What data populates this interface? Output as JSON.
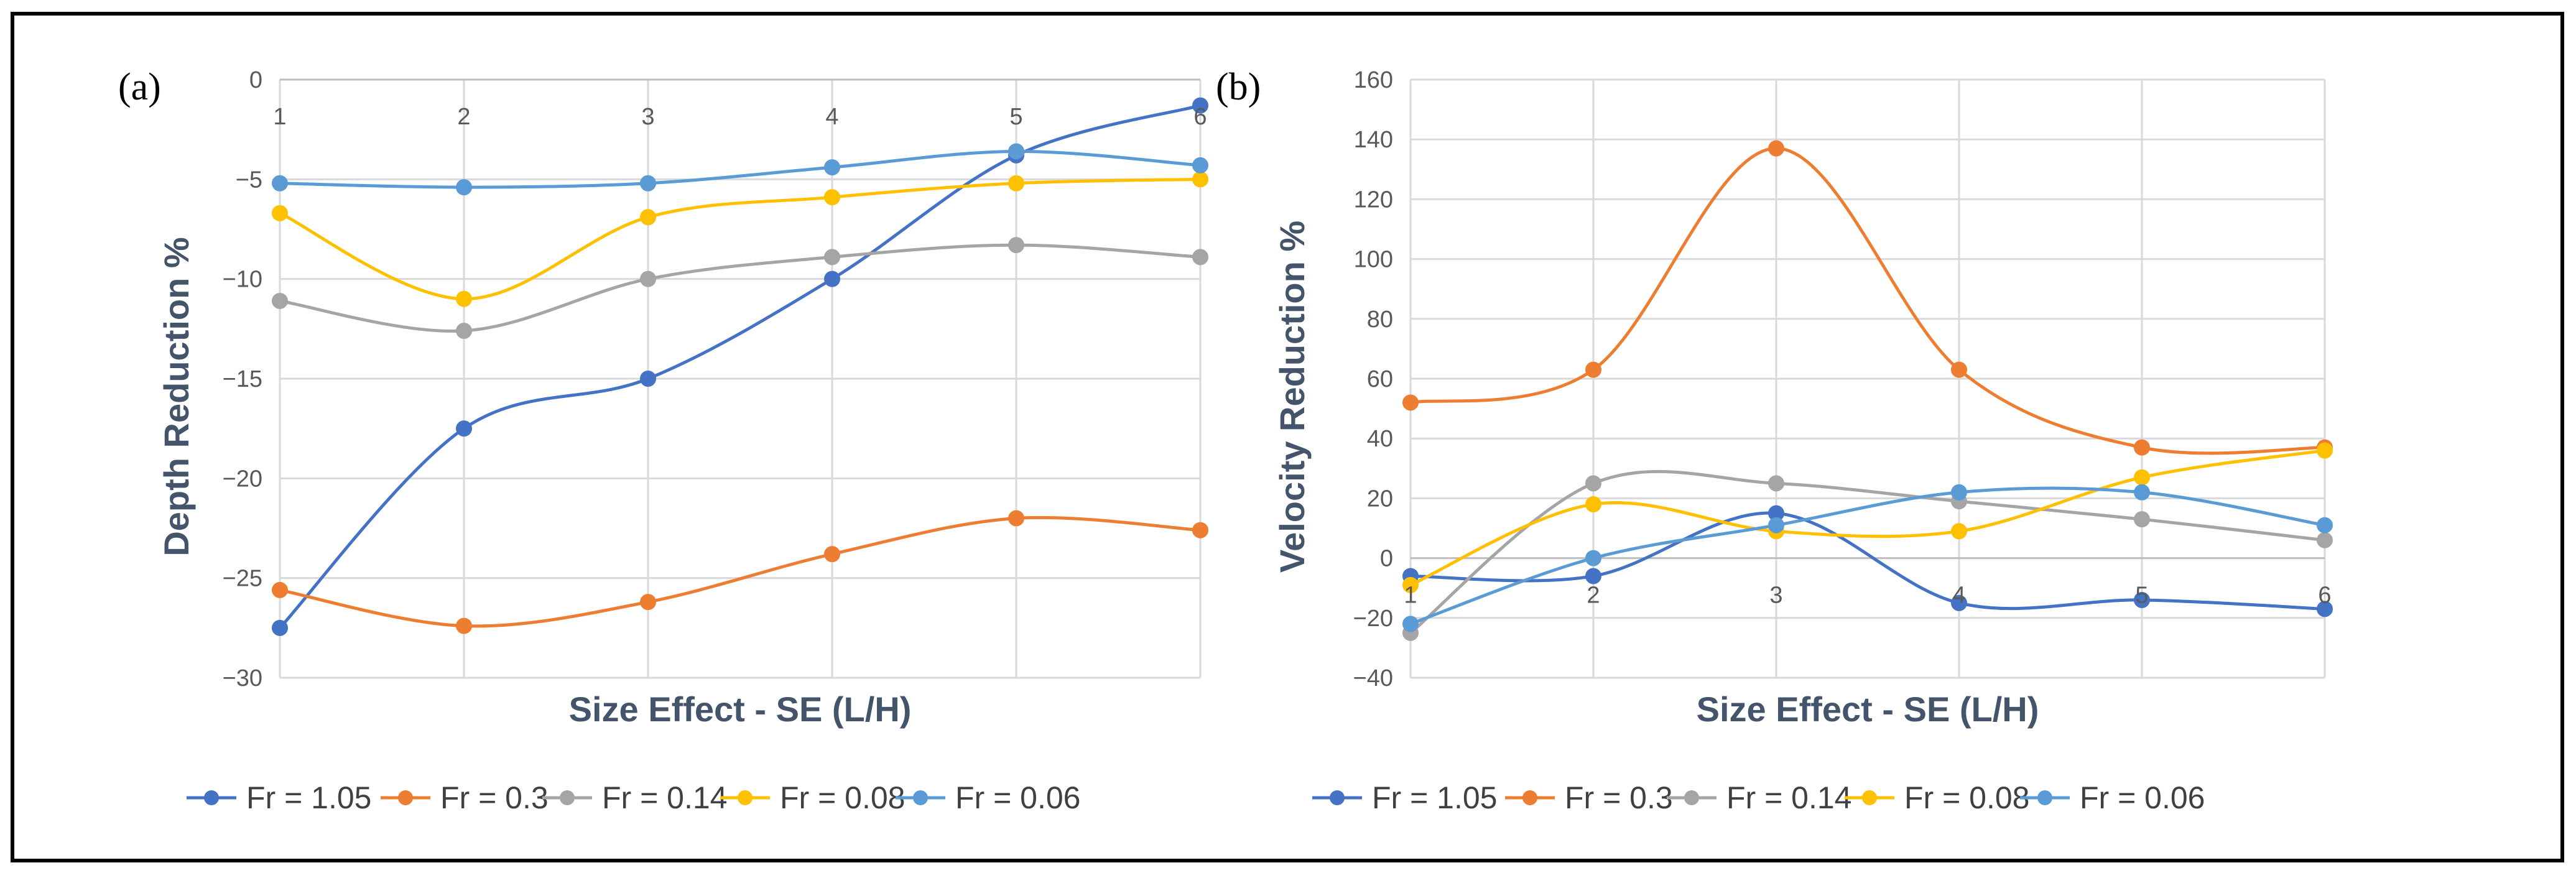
{
  "chart_data": [
    {
      "type": "line",
      "panel_label": "(a)",
      "title": "",
      "xlabel": "Size Effect - SE (L/H)",
      "ylabel": "Depth Reduction %",
      "x": [
        1,
        2,
        3,
        4,
        5,
        6
      ],
      "x_tick_labels": [
        "1",
        "2",
        "3",
        "4",
        "5",
        "6"
      ],
      "xlim": [
        1,
        6
      ],
      "ylim": [
        -30,
        0
      ],
      "y_ticks": [
        0,
        -5,
        -10,
        -15,
        -20,
        -25,
        -30
      ],
      "y_tick_labels": [
        "0",
        "−5",
        "−10",
        "−15",
        "−20",
        "−25",
        "−30"
      ],
      "x_axis_at": 0,
      "grid": true,
      "smooth": true,
      "legend": "bottom",
      "series": [
        {
          "name": "Fr = 1.05",
          "color": "#4472C4",
          "values": [
            -27.5,
            -17.5,
            -15,
            -10,
            -3.8,
            -1.3
          ]
        },
        {
          "name": "Fr = 0.3",
          "color": "#ED7D31",
          "values": [
            -25.6,
            -27.4,
            -26.2,
            -23.8,
            -22,
            -22.6
          ]
        },
        {
          "name": "Fr = 0.14",
          "color": "#A5A5A5",
          "values": [
            -11.1,
            -12.6,
            -10,
            -8.9,
            -8.3,
            -8.9
          ]
        },
        {
          "name": "Fr = 0.08",
          "color": "#FFC000",
          "values": [
            -6.7,
            -11,
            -6.9,
            -5.9,
            -5.2,
            -5
          ]
        },
        {
          "name": "Fr = 0.06",
          "color": "#5B9BD5",
          "values": [
            -5.2,
            -5.4,
            -5.2,
            -4.4,
            -3.6,
            -4.3
          ]
        }
      ]
    },
    {
      "type": "line",
      "panel_label": "(b)",
      "title": "",
      "xlabel": "Size Effect - SE (L/H)",
      "ylabel": "Velocity Reduction %",
      "x": [
        1,
        2,
        3,
        4,
        5,
        6
      ],
      "x_tick_labels": [
        "1",
        "2",
        "3",
        "4",
        "5",
        "6"
      ],
      "xlim": [
        1,
        6
      ],
      "ylim": [
        -40,
        160
      ],
      "y_ticks": [
        160,
        140,
        120,
        100,
        80,
        60,
        40,
        20,
        0,
        -20,
        -40
      ],
      "y_tick_labels": [
        "160",
        "140",
        "120",
        "100",
        "80",
        "60",
        "40",
        "20",
        "0",
        "−20",
        "−40"
      ],
      "x_axis_at": 0,
      "grid": true,
      "smooth": true,
      "legend": "bottom",
      "series": [
        {
          "name": "Fr = 1.05",
          "color": "#4472C4",
          "values": [
            -6,
            -6,
            15,
            -15,
            -14,
            -17
          ]
        },
        {
          "name": "Fr = 0.3",
          "color": "#ED7D31",
          "values": [
            52,
            63,
            137,
            63,
            37,
            37
          ]
        },
        {
          "name": "Fr = 0.14",
          "color": "#A5A5A5",
          "values": [
            -25,
            25,
            25,
            19,
            13,
            6
          ]
        },
        {
          "name": "Fr = 0.08",
          "color": "#FFC000",
          "values": [
            -9,
            18,
            9,
            9,
            27,
            36
          ]
        },
        {
          "name": "Fr = 0.06",
          "color": "#5B9BD5",
          "values": [
            -22,
            0,
            11,
            22,
            22,
            11
          ]
        }
      ]
    }
  ]
}
